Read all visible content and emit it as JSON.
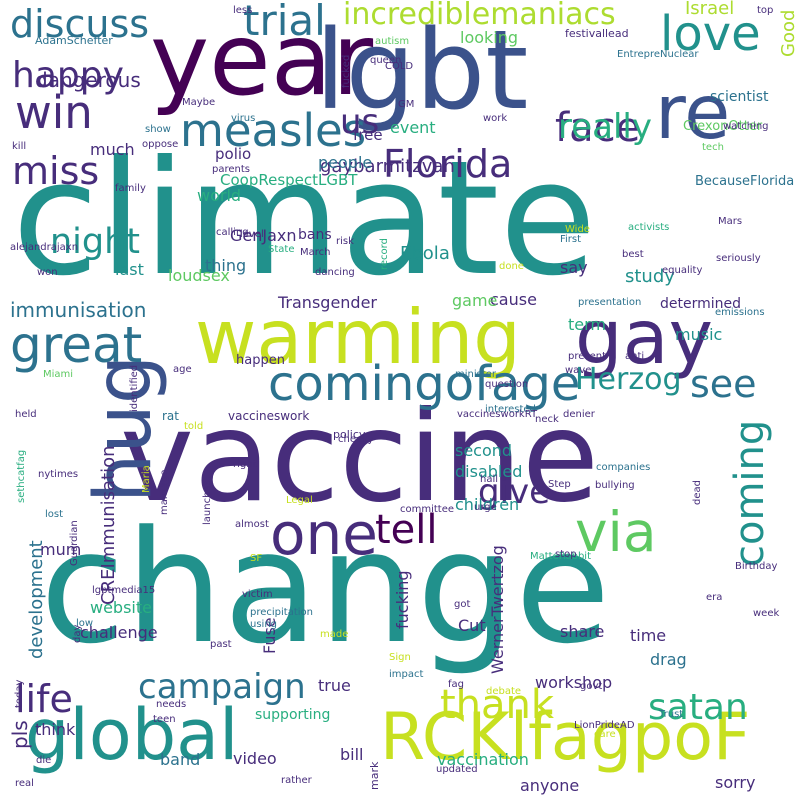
{
  "palette": {
    "purple_dark": "#440154",
    "indigo": "#472d7b",
    "blue": "#3b528b",
    "steel": "#2c728e",
    "teal": "#21918c",
    "green_teal": "#28ae80",
    "green": "#5ec962",
    "yellow_green": "#addc30",
    "yellow": "#fde725"
  },
  "words": [
    {
      "text": "climate",
      "color": "#21918c"
    },
    {
      "text": "change",
      "color": "#21918c"
    },
    {
      "text": "vaccine",
      "color": "#472d7b"
    },
    {
      "text": "year",
      "color": "#440154"
    },
    {
      "text": "lgbt",
      "color": "#3b528b"
    },
    {
      "text": "warming",
      "color": "#c7e020"
    },
    {
      "text": "global",
      "color": "#21918c"
    },
    {
      "text": "gay",
      "color": "#472d7b"
    },
    {
      "text": "hug",
      "color": "#3b528b"
    },
    {
      "text": "re",
      "color": "#3b528b"
    },
    {
      "text": "RCKlfagpoF",
      "color": "#c7e020"
    },
    {
      "text": "one",
      "color": "#472d7b"
    },
    {
      "text": "via",
      "color": "#5ec962"
    },
    {
      "text": "great",
      "color": "#2c728e"
    },
    {
      "text": "comingofage",
      "color": "#2c728e"
    },
    {
      "text": "measles",
      "color": "#2c728e"
    },
    {
      "text": "discuss",
      "color": "#2c728e"
    },
    {
      "text": "trial",
      "color": "#2c728e"
    },
    {
      "text": "love",
      "color": "#21918c"
    },
    {
      "text": "face",
      "color": "#472d7b"
    },
    {
      "text": "win",
      "color": "#472d7b"
    },
    {
      "text": "happy",
      "color": "#472d7b"
    },
    {
      "text": "incrediblemaniacs",
      "color": "#addc30"
    },
    {
      "text": "Florida",
      "color": "#472d7b"
    },
    {
      "text": "miss",
      "color": "#472d7b"
    },
    {
      "text": "night",
      "color": "#21918c"
    },
    {
      "text": "really",
      "color": "#28ae80"
    },
    {
      "text": "see",
      "color": "#2c728e"
    },
    {
      "text": "Herzog",
      "color": "#21918c"
    },
    {
      "text": "life",
      "color": "#472d7b"
    },
    {
      "text": "tell",
      "color": "#440154"
    },
    {
      "text": "give",
      "color": "#472d7b"
    },
    {
      "text": "coming",
      "color": "#21918c"
    },
    {
      "text": "thank",
      "color": "#c7e020"
    },
    {
      "text": "satan",
      "color": "#28ae80"
    },
    {
      "text": "campaign",
      "color": "#2c728e"
    },
    {
      "text": "us",
      "color": "#472d7b"
    },
    {
      "text": "dangerous",
      "color": "#472d7b"
    },
    {
      "text": "looking",
      "color": "#5ec962"
    },
    {
      "text": "Israel",
      "color": "#addc30"
    },
    {
      "text": "Good",
      "color": "#addc30"
    },
    {
      "text": "immunisation",
      "color": "#2c728e"
    },
    {
      "text": "gaybarmitzvah",
      "color": "#472d7b"
    },
    {
      "text": "people",
      "color": "#2c728e"
    },
    {
      "text": "event",
      "color": "#28ae80"
    },
    {
      "text": "scientist",
      "color": "#2c728e"
    },
    {
      "text": "free",
      "color": "#472d7b"
    },
    {
      "text": "CoopRespectLGBT",
      "color": "#28ae80"
    },
    {
      "text": "GenJaxn",
      "color": "#472d7b"
    },
    {
      "text": "Ebola",
      "color": "#21918c"
    },
    {
      "text": "study",
      "color": "#21918c"
    },
    {
      "text": "BecauseFlorida",
      "color": "#2c728e"
    },
    {
      "text": "Transgender",
      "color": "#472d7b"
    },
    {
      "text": "CREImmunisation",
      "color": "#472d7b"
    },
    {
      "text": "loudsex",
      "color": "#5ec962"
    },
    {
      "text": "cause",
      "color": "#472d7b"
    },
    {
      "text": "determined",
      "color": "#472d7b"
    },
    {
      "text": "term",
      "color": "#28ae80"
    },
    {
      "text": "music",
      "color": "#21918c"
    },
    {
      "text": "website",
      "color": "#28ae80"
    },
    {
      "text": "children",
      "color": "#21918c"
    },
    {
      "text": "second",
      "color": "#21918c"
    },
    {
      "text": "disabled",
      "color": "#21918c"
    },
    {
      "text": "development",
      "color": "#2c728e"
    },
    {
      "text": "mum",
      "color": "#472d7b"
    },
    {
      "text": "challenge",
      "color": "#472d7b"
    },
    {
      "text": "Cut",
      "color": "#472d7b"
    },
    {
      "text": "time",
      "color": "#472d7b"
    },
    {
      "text": "share",
      "color": "#472d7b"
    },
    {
      "text": "drag",
      "color": "#2c728e"
    },
    {
      "text": "workshop",
      "color": "#472d7b"
    },
    {
      "text": "Fuse",
      "color": "#472d7b"
    },
    {
      "text": "fucking",
      "color": "#472d7b"
    },
    {
      "text": "WernerTwertzog",
      "color": "#472d7b"
    },
    {
      "text": "true",
      "color": "#472d7b"
    },
    {
      "text": "think",
      "color": "#472d7b"
    },
    {
      "text": "pls",
      "color": "#472d7b"
    },
    {
      "text": "band",
      "color": "#2c728e"
    },
    {
      "text": "video",
      "color": "#472d7b"
    },
    {
      "text": "bill",
      "color": "#472d7b"
    },
    {
      "text": "vaccination",
      "color": "#28ae80"
    },
    {
      "text": "sorry",
      "color": "#472d7b"
    },
    {
      "text": "anyone",
      "color": "#472d7b"
    },
    {
      "text": "supporting",
      "color": "#28ae80"
    },
    {
      "text": "world",
      "color": "#28ae80"
    },
    {
      "text": "thing",
      "color": "#2c728e"
    },
    {
      "text": "bans",
      "color": "#472d7b"
    },
    {
      "text": "last",
      "color": "#21918c"
    },
    {
      "text": "say",
      "color": "#472d7b"
    },
    {
      "text": "game",
      "color": "#5ec962"
    },
    {
      "text": "much",
      "color": "#472d7b"
    },
    {
      "text": "polio",
      "color": "#472d7b"
    },
    {
      "text": "happen",
      "color": "#472d7b"
    },
    {
      "text": "AdamSchefter",
      "color": "#2c728e"
    },
    {
      "text": "autism",
      "color": "#5ec962"
    },
    {
      "text": "festival",
      "color": "#472d7b"
    },
    {
      "text": "lead",
      "color": "#472d7b"
    },
    {
      "text": "top",
      "color": "#472d7b"
    },
    {
      "text": "EntrepreNuclear",
      "color": "#2c728e"
    },
    {
      "text": "queen",
      "color": "#472d7b"
    },
    {
      "text": "COLD",
      "color": "#472d7b"
    },
    {
      "text": "fucked",
      "color": "#472d7b"
    },
    {
      "text": "less",
      "color": "#472d7b"
    },
    {
      "text": "GM",
      "color": "#472d7b"
    },
    {
      "text": "virus",
      "color": "#2c728e"
    },
    {
      "text": "Maybe",
      "color": "#472d7b"
    },
    {
      "text": "work",
      "color": "#472d7b"
    },
    {
      "text": "CrexonOtter",
      "color": "#5ec962"
    },
    {
      "text": "tech",
      "color": "#5ec962"
    },
    {
      "text": "watching",
      "color": "#472d7b"
    },
    {
      "text": "kill",
      "color": "#472d7b"
    },
    {
      "text": "show",
      "color": "#2c728e"
    },
    {
      "text": "oppose",
      "color": "#472d7b"
    },
    {
      "text": "parents",
      "color": "#472d7b"
    },
    {
      "text": "family",
      "color": "#472d7b"
    },
    {
      "text": "calling",
      "color": "#472d7b"
    },
    {
      "text": "level",
      "color": "#472d7b"
    },
    {
      "text": "alejandrajaxn",
      "color": "#472d7b"
    },
    {
      "text": "risk",
      "color": "#472d7b"
    },
    {
      "text": "State",
      "color": "#28ae80"
    },
    {
      "text": "March",
      "color": "#472d7b"
    },
    {
      "text": "dancing",
      "color": "#472d7b"
    },
    {
      "text": "record",
      "color": "#28ae80"
    },
    {
      "text": "Wide",
      "color": "#c7e020"
    },
    {
      "text": "First",
      "color": "#2c728e"
    },
    {
      "text": "activists",
      "color": "#28ae80"
    },
    {
      "text": "best",
      "color": "#472d7b"
    },
    {
      "text": "Mars",
      "color": "#472d7b"
    },
    {
      "text": "seriously",
      "color": "#472d7b"
    },
    {
      "text": "done",
      "color": "#c7e020"
    },
    {
      "text": "equality",
      "color": "#472d7b"
    },
    {
      "text": "won",
      "color": "#472d7b"
    },
    {
      "text": "presentation",
      "color": "#2c728e"
    },
    {
      "text": "emissions",
      "color": "#2c728e"
    },
    {
      "text": "anti",
      "color": "#472d7b"
    },
    {
      "text": "present",
      "color": "#472d7b"
    },
    {
      "text": "wave",
      "color": "#472d7b"
    },
    {
      "text": "minister",
      "color": "#2c728e"
    },
    {
      "text": "Miami",
      "color": "#5ec962"
    },
    {
      "text": "identified",
      "color": "#472d7b"
    },
    {
      "text": "age",
      "color": "#472d7b"
    },
    {
      "text": "question",
      "color": "#472d7b"
    },
    {
      "text": "interested",
      "color": "#2c728e"
    },
    {
      "text": "rat",
      "color": "#2c728e"
    },
    {
      "text": "vaccineswork",
      "color": "#472d7b"
    },
    {
      "text": "vaccinesworkRT",
      "color": "#472d7b"
    },
    {
      "text": "denier",
      "color": "#472d7b"
    },
    {
      "text": "held",
      "color": "#472d7b"
    },
    {
      "text": "told",
      "color": "#c7e020"
    },
    {
      "text": "sethcatfag",
      "color": "#28ae80"
    },
    {
      "text": "nytimes",
      "color": "#472d7b"
    },
    {
      "text": "marriage",
      "color": "#472d7b"
    },
    {
      "text": "policy",
      "color": "#472d7b"
    },
    {
      "text": "cheeky",
      "color": "#472d7b"
    },
    {
      "text": "neck",
      "color": "#472d7b"
    },
    {
      "text": "companies",
      "color": "#2c728e"
    },
    {
      "text": "dead",
      "color": "#472d7b"
    },
    {
      "text": "Maria",
      "color": "#c7e020"
    },
    {
      "text": "right",
      "color": "#472d7b"
    },
    {
      "text": "Legal",
      "color": "#c7e020"
    },
    {
      "text": "hall",
      "color": "#472d7b"
    },
    {
      "text": "Step",
      "color": "#472d7b"
    },
    {
      "text": "bullying",
      "color": "#472d7b"
    },
    {
      "text": "launches",
      "color": "#472d7b"
    },
    {
      "text": "lost",
      "color": "#2c728e"
    },
    {
      "text": "almost",
      "color": "#472d7b"
    },
    {
      "text": "committee",
      "color": "#472d7b"
    },
    {
      "text": "urge",
      "color": "#472d7b"
    },
    {
      "text": "Guardian",
      "color": "#472d7b"
    },
    {
      "text": "SF",
      "color": "#c7e020"
    },
    {
      "text": "MatteRabbit",
      "color": "#28ae80"
    },
    {
      "text": "stop",
      "color": "#472d7b"
    },
    {
      "text": "Birthday",
      "color": "#472d7b"
    },
    {
      "text": "lgbtmedia15",
      "color": "#472d7b"
    },
    {
      "text": "victim",
      "color": "#472d7b"
    },
    {
      "text": "precipitation",
      "color": "#2c728e"
    },
    {
      "text": "low",
      "color": "#2c728e"
    },
    {
      "text": "using",
      "color": "#2c728e"
    },
    {
      "text": "got",
      "color": "#472d7b"
    },
    {
      "text": "era",
      "color": "#472d7b"
    },
    {
      "text": "week",
      "color": "#472d7b"
    },
    {
      "text": "day",
      "color": "#472d7b"
    },
    {
      "text": "past",
      "color": "#472d7b"
    },
    {
      "text": "made",
      "color": "#c7e020"
    },
    {
      "text": "Sign",
      "color": "#c7e020"
    },
    {
      "text": "impact",
      "color": "#2c728e"
    },
    {
      "text": "today",
      "color": "#472d7b"
    },
    {
      "text": "fag",
      "color": "#472d7b"
    },
    {
      "text": "govt",
      "color": "#472d7b"
    },
    {
      "text": "debate",
      "color": "#c7e020"
    },
    {
      "text": "Trust",
      "color": "#2c728e"
    },
    {
      "text": "needs",
      "color": "#472d7b"
    },
    {
      "text": "teen",
      "color": "#472d7b"
    },
    {
      "text": "die",
      "color": "#472d7b"
    },
    {
      "text": "LionPrideAD",
      "color": "#472d7b"
    },
    {
      "text": "care",
      "color": "#c7e020"
    },
    {
      "text": "mark",
      "color": "#472d7b"
    },
    {
      "text": "updated",
      "color": "#472d7b"
    },
    {
      "text": "rather",
      "color": "#472d7b"
    },
    {
      "text": "real",
      "color": "#472d7b"
    }
  ]
}
